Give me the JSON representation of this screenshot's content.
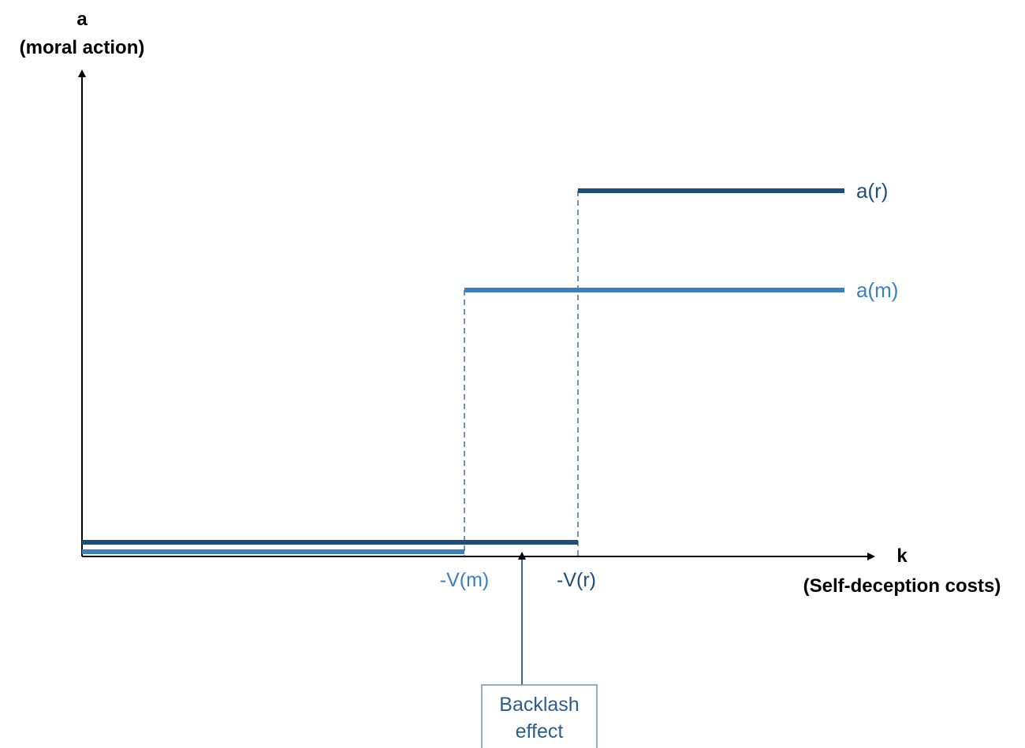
{
  "y_axis": {
    "symbol": "a",
    "name": "(moral action)"
  },
  "x_axis": {
    "symbol": "k",
    "name": "(Self-deception costs)"
  },
  "series": [
    {
      "key": "r",
      "label": "a(r)",
      "color": "#1f4e79",
      "threshold_label": "-V(r)",
      "threshold_color": "#1f4e79"
    },
    {
      "key": "m",
      "label": "a(m)",
      "color": "#3b7fbf",
      "threshold_label": "-V(m)",
      "threshold_color": "#3b7fbf"
    }
  ],
  "annotation": {
    "line1": "Backlash",
    "line2": "effect",
    "border_color": "#6f93b5",
    "text_color": "#2b5e8a"
  },
  "colors": {
    "axis": "#000000",
    "dash": "#4a6f95"
  }
}
